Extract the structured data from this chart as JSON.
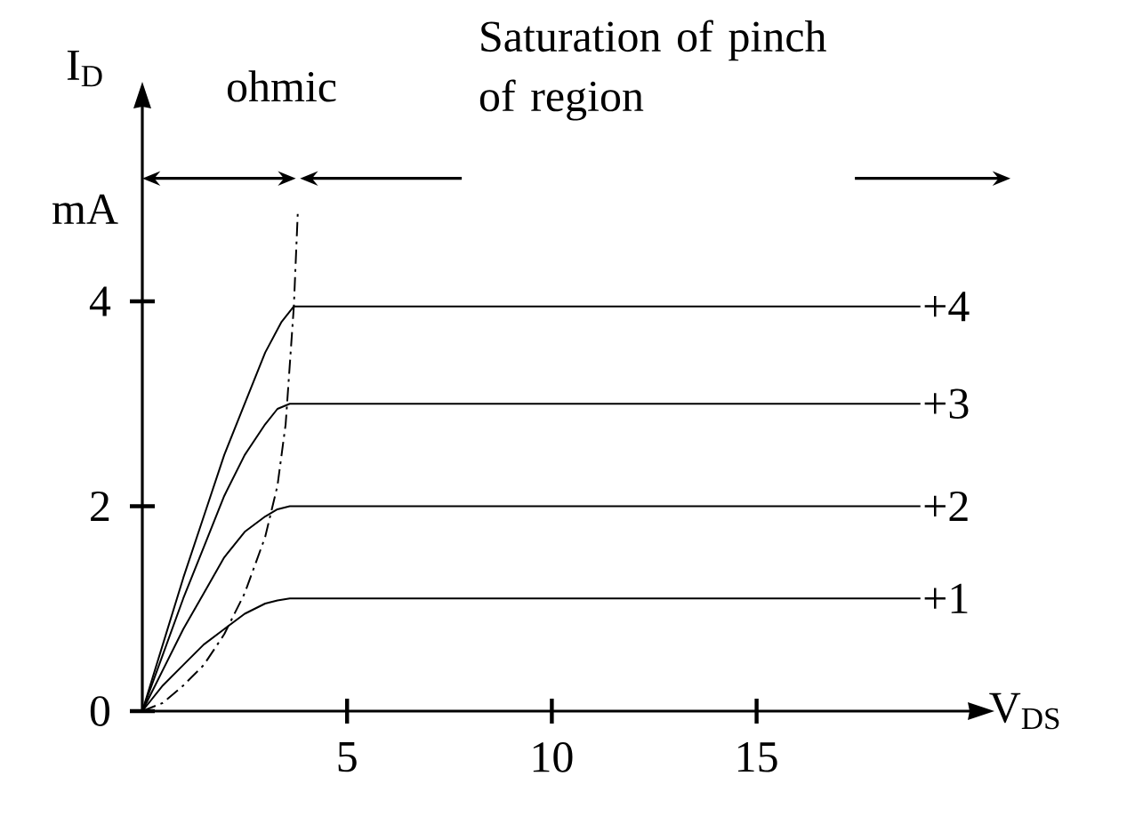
{
  "chart_data": {
    "type": "line",
    "xlabel": "V$_{DS}$",
    "ylabel": "I$_{D}$",
    "xlim": [
      0,
      20.2
    ],
    "ylim": [
      0,
      5.9
    ],
    "xticks": [
      5,
      10,
      15
    ],
    "yticks": [
      0,
      2,
      4
    ],
    "marker": "none",
    "annotations": [
      "mA",
      "ohmic",
      "Saturation of pinch of region"
    ],
    "series": [
      {
        "name": "+4",
        "color": "#000000",
        "x": [
          0,
          0.5,
          1,
          1.5,
          2,
          2.5,
          3,
          3.4,
          3.7,
          4,
          19
        ],
        "values": [
          0,
          0.65,
          1.3,
          1.9,
          2.5,
          3.0,
          3.5,
          3.8,
          3.95,
          3.95,
          3.95
        ]
      },
      {
        "name": "+3",
        "color": "#000000",
        "x": [
          0,
          0.5,
          1,
          1.5,
          2,
          2.5,
          3,
          3.3,
          3.6,
          19
        ],
        "values": [
          0,
          0.55,
          1.1,
          1.6,
          2.1,
          2.5,
          2.8,
          2.95,
          3.0,
          3.0
        ]
      },
      {
        "name": "+2",
        "color": "#000000",
        "x": [
          0,
          0.5,
          1,
          1.5,
          2,
          2.5,
          3,
          3.3,
          3.6,
          19
        ],
        "values": [
          0,
          0.4,
          0.8,
          1.15,
          1.5,
          1.75,
          1.9,
          1.97,
          2.0,
          2.0
        ]
      },
      {
        "name": "+1",
        "color": "#000000",
        "x": [
          0,
          0.5,
          1,
          1.5,
          2,
          2.5,
          3,
          3.3,
          3.6,
          19
        ],
        "values": [
          0,
          0.25,
          0.45,
          0.65,
          0.8,
          0.95,
          1.05,
          1.08,
          1.1,
          1.1
        ]
      },
      {
        "color": "#000000",
        "line_style": "dashed",
        "x": [
          0,
          0.5,
          1,
          1.5,
          2,
          2.5,
          3,
          3.3,
          3.5,
          3.7,
          3.8
        ],
        "values": [
          0,
          0.08,
          0.25,
          0.45,
          0.75,
          1.15,
          1.7,
          2.2,
          2.8,
          3.95,
          4.9
        ]
      }
    ]
  }
}
